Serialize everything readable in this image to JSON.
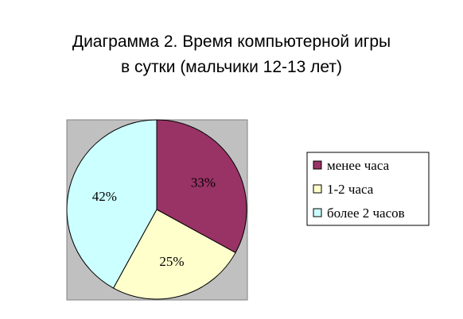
{
  "chart_data": {
    "type": "pie",
    "title": "Диаграмма 2. Время компьютерной игры",
    "subtitle": "в сутки (мальчики 12-13 лет)",
    "categories": [
      "менее часа",
      "1-2 часа",
      "более 2 часов"
    ],
    "values": [
      33,
      25,
      42
    ],
    "data_labels": [
      "33%",
      "25%",
      "42%"
    ],
    "colors": [
      "#993366",
      "#FFFFCC",
      "#CCFFFF"
    ],
    "plot_background": "#C0C0C0",
    "legend_placement": "right"
  }
}
